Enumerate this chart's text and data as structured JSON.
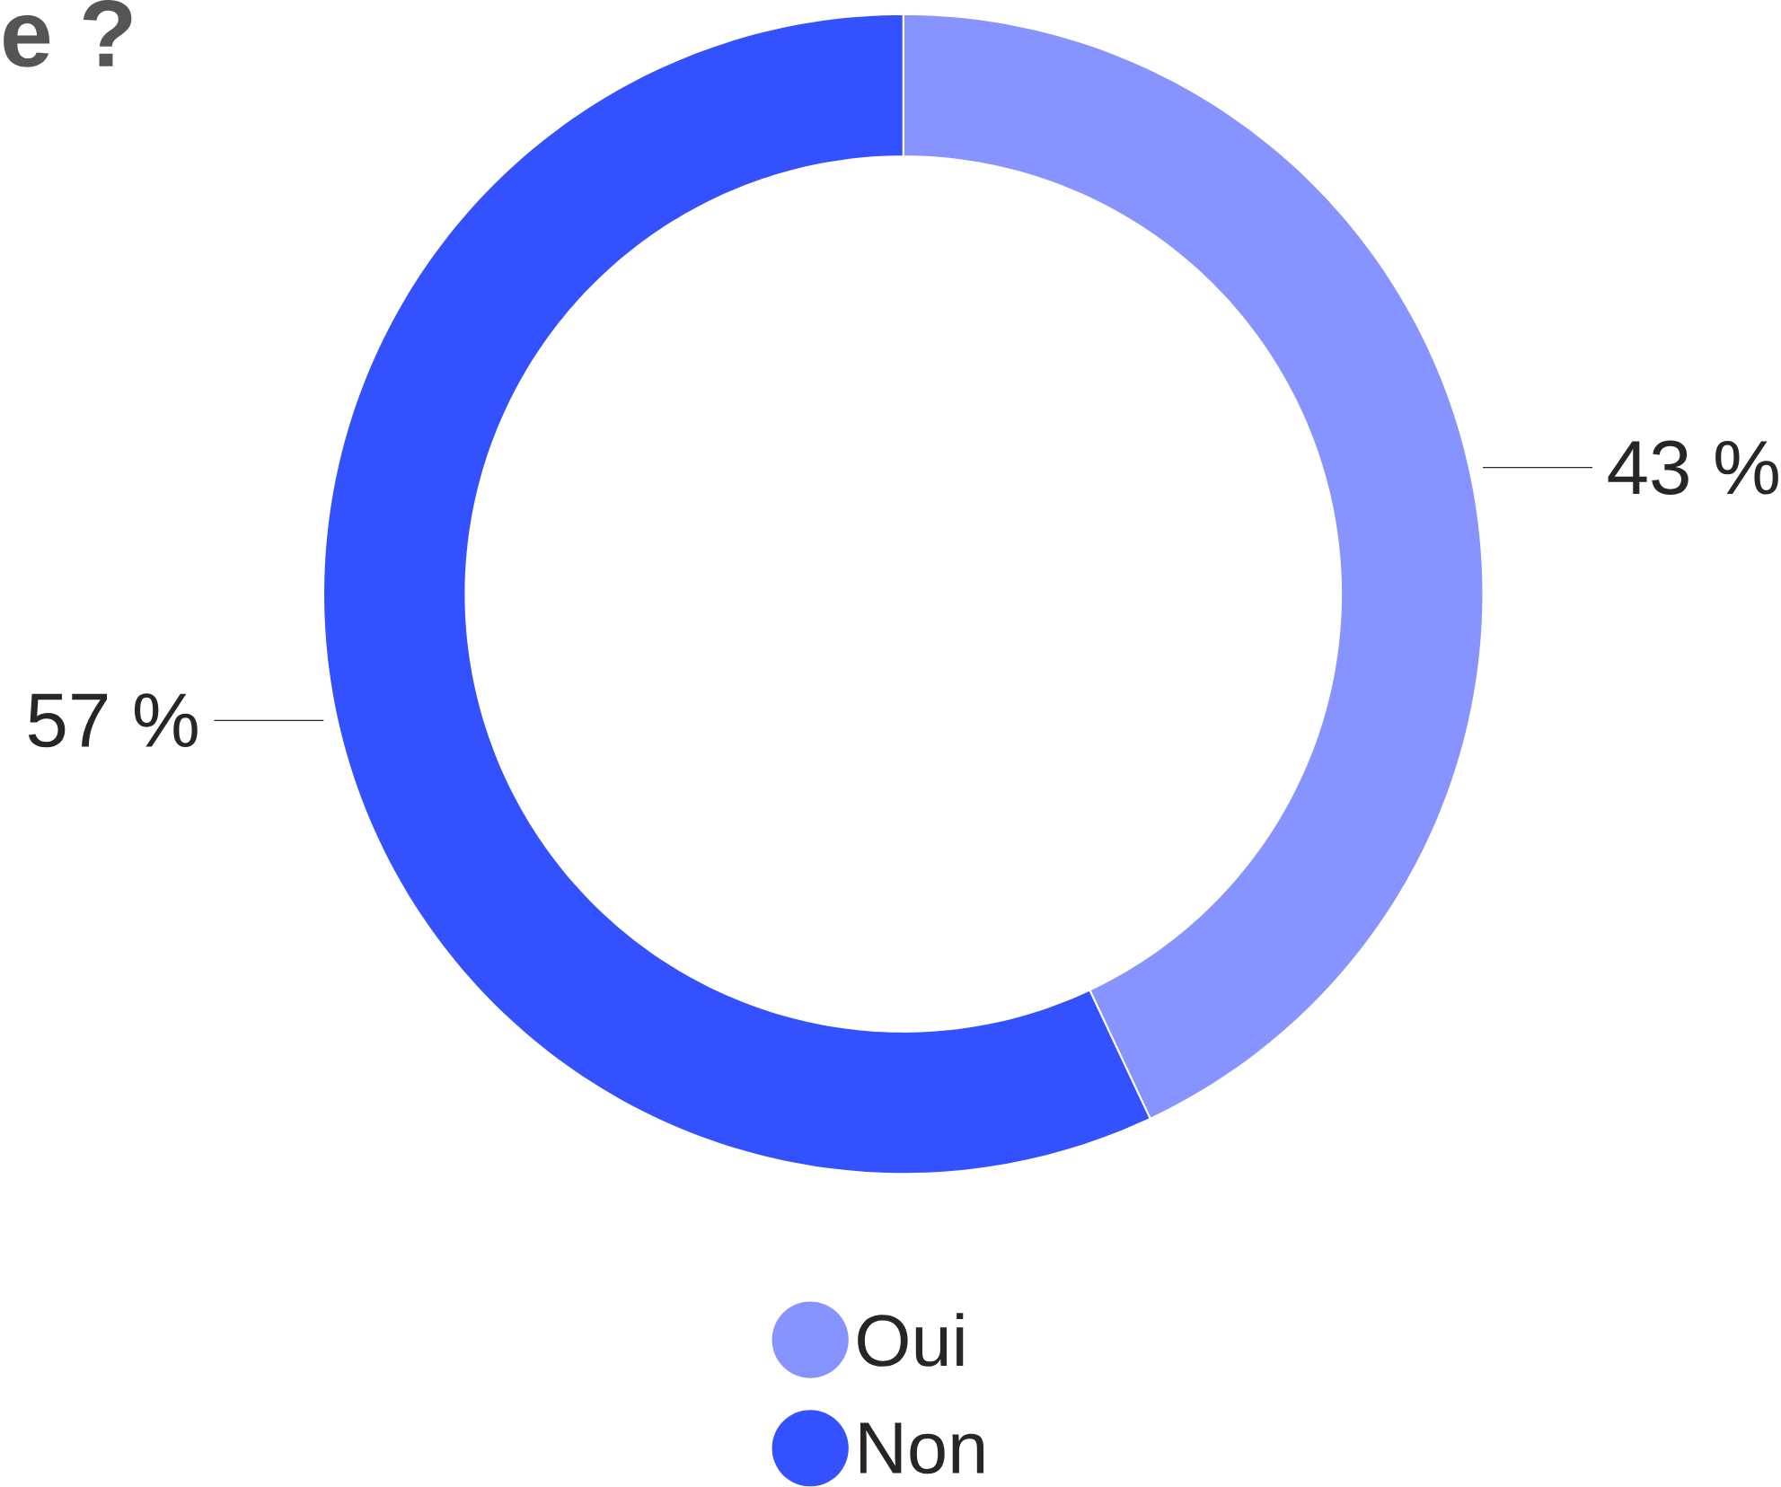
{
  "chart_data": {
    "type": "donut",
    "title": "e ?",
    "categories": [
      "Oui",
      "Non"
    ],
    "values": [
      43,
      57
    ],
    "colors": [
      "#8794ff",
      "#3451ff"
    ],
    "value_labels": [
      "43 %",
      "57 %"
    ],
    "legend": "bottom"
  }
}
